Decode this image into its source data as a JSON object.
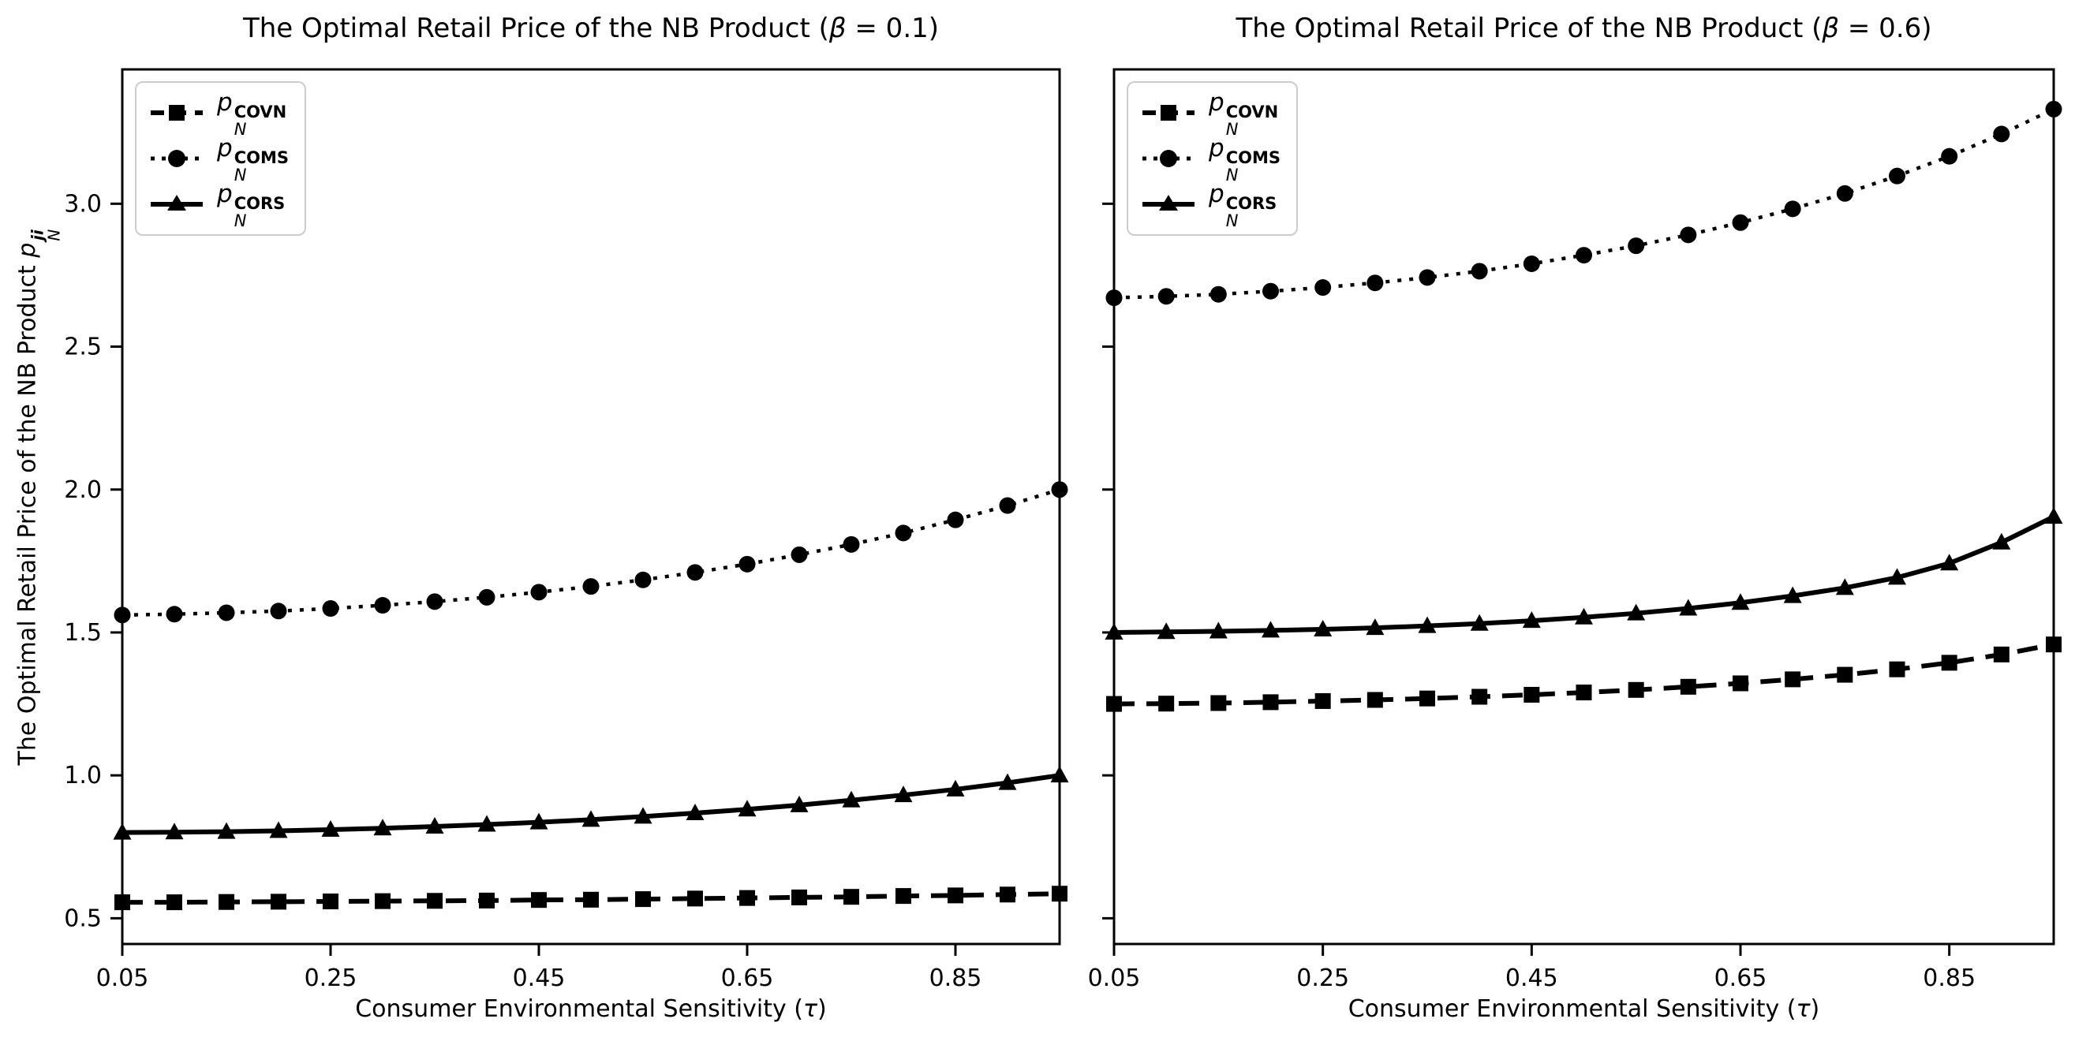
{
  "figure": {
    "background": "#ffffff",
    "line_color": "#000000",
    "legend_border_color": "#cccccc"
  },
  "ylabel": {
    "text": "The Optimal Retail Price of the NB Product ",
    "var": "p",
    "sub": "N",
    "sup": "ji"
  },
  "xlabel": {
    "text": "Consumer Environmental Sensitivity (",
    "tau": "τ",
    "post": ")"
  },
  "legend_var": {
    "var": "p",
    "sub": "N"
  },
  "chart_data": [
    {
      "id": "beta-0.1",
      "type": "line",
      "title": "The Optimal Retail Price of the NB Product (β = 0.1)",
      "title_pre": "The Optimal Retail Price of the NB Product (",
      "title_beta": "β",
      "title_post": " = 0.1)",
      "xlabel": "Consumer Environmental Sensitivity (τ)",
      "xlim": [
        0.05,
        0.95
      ],
      "ylim": [
        0.41,
        3.47
      ],
      "grid": false,
      "legend_position": "upper-left",
      "x_ticks": [
        "0.05",
        "0.25",
        "0.45",
        "0.65",
        "0.85"
      ],
      "x_tick_vals": [
        0.05,
        0.25,
        0.45,
        0.65,
        0.85
      ],
      "y_ticks": [
        "0.5",
        "1.0",
        "1.5",
        "2.0",
        "2.5",
        "3.0"
      ],
      "y_tick_vals": [
        0.5,
        1.0,
        1.5,
        2.0,
        2.5,
        3.0
      ],
      "y_tick_labels_visible": true,
      "x": [
        0.05,
        0.1,
        0.15,
        0.2,
        0.25,
        0.3,
        0.35,
        0.4,
        0.45,
        0.5,
        0.55,
        0.6,
        0.65,
        0.7,
        0.75,
        0.8,
        0.85,
        0.9,
        0.95
      ],
      "series": [
        {
          "name": "COVN",
          "marker": "square",
          "line": "dashed",
          "values": [
            0.556,
            0.556,
            0.557,
            0.558,
            0.559,
            0.56,
            0.561,
            0.562,
            0.564,
            0.565,
            0.567,
            0.569,
            0.571,
            0.573,
            0.575,
            0.578,
            0.58,
            0.583,
            0.586
          ]
        },
        {
          "name": "COMS",
          "marker": "circle",
          "line": "dotted",
          "values": [
            1.561,
            1.564,
            1.569,
            1.575,
            1.584,
            1.595,
            1.608,
            1.623,
            1.641,
            1.661,
            1.684,
            1.71,
            1.739,
            1.772,
            1.808,
            1.848,
            1.894,
            1.944,
            2.0
          ]
        },
        {
          "name": "CORS",
          "marker": "triangle",
          "line": "solid",
          "values": [
            0.8,
            0.801,
            0.803,
            0.806,
            0.81,
            0.815,
            0.821,
            0.828,
            0.836,
            0.845,
            0.856,
            0.868,
            0.881,
            0.896,
            0.913,
            0.931,
            0.951,
            0.974,
            1.0
          ]
        }
      ]
    },
    {
      "id": "beta-0.6",
      "type": "line",
      "title": "The Optimal Retail Price of the NB Product (β = 0.6)",
      "title_pre": "The Optimal Retail Price of the NB Product (",
      "title_beta": "β",
      "title_post": " = 0.6)",
      "xlabel": "Consumer Environmental Sensitivity (τ)",
      "xlim": [
        0.05,
        0.95
      ],
      "ylim": [
        0.41,
        3.47
      ],
      "grid": false,
      "legend_position": "upper-left",
      "x_ticks": [
        "0.05",
        "0.25",
        "0.45",
        "0.65",
        "0.85"
      ],
      "x_tick_vals": [
        0.05,
        0.25,
        0.45,
        0.65,
        0.85
      ],
      "y_ticks": [
        "0.5",
        "1.0",
        "1.5",
        "2.0",
        "2.5",
        "3.0"
      ],
      "y_tick_vals": [
        0.5,
        1.0,
        1.5,
        2.0,
        2.5,
        3.0
      ],
      "y_tick_labels_visible": false,
      "x": [
        0.05,
        0.1,
        0.15,
        0.2,
        0.25,
        0.3,
        0.35,
        0.4,
        0.45,
        0.5,
        0.55,
        0.6,
        0.65,
        0.7,
        0.75,
        0.8,
        0.85,
        0.9,
        0.95
      ],
      "series": [
        {
          "name": "COVN",
          "marker": "square",
          "line": "dashed",
          "values": [
            1.25,
            1.251,
            1.253,
            1.256,
            1.26,
            1.264,
            1.269,
            1.275,
            1.282,
            1.29,
            1.299,
            1.31,
            1.322,
            1.336,
            1.352,
            1.371,
            1.394,
            1.423,
            1.458
          ]
        },
        {
          "name": "COMS",
          "marker": "circle",
          "line": "dotted",
          "values": [
            2.671,
            2.676,
            2.683,
            2.694,
            2.707,
            2.723,
            2.742,
            2.764,
            2.79,
            2.82,
            2.853,
            2.891,
            2.934,
            2.982,
            3.036,
            3.097,
            3.166,
            3.244,
            3.331
          ]
        },
        {
          "name": "CORS",
          "marker": "triangle",
          "line": "solid",
          "values": [
            1.5,
            1.502,
            1.504,
            1.507,
            1.511,
            1.516,
            1.523,
            1.531,
            1.541,
            1.553,
            1.567,
            1.584,
            1.604,
            1.628,
            1.656,
            1.692,
            1.742,
            1.815,
            1.905
          ]
        }
      ]
    }
  ]
}
